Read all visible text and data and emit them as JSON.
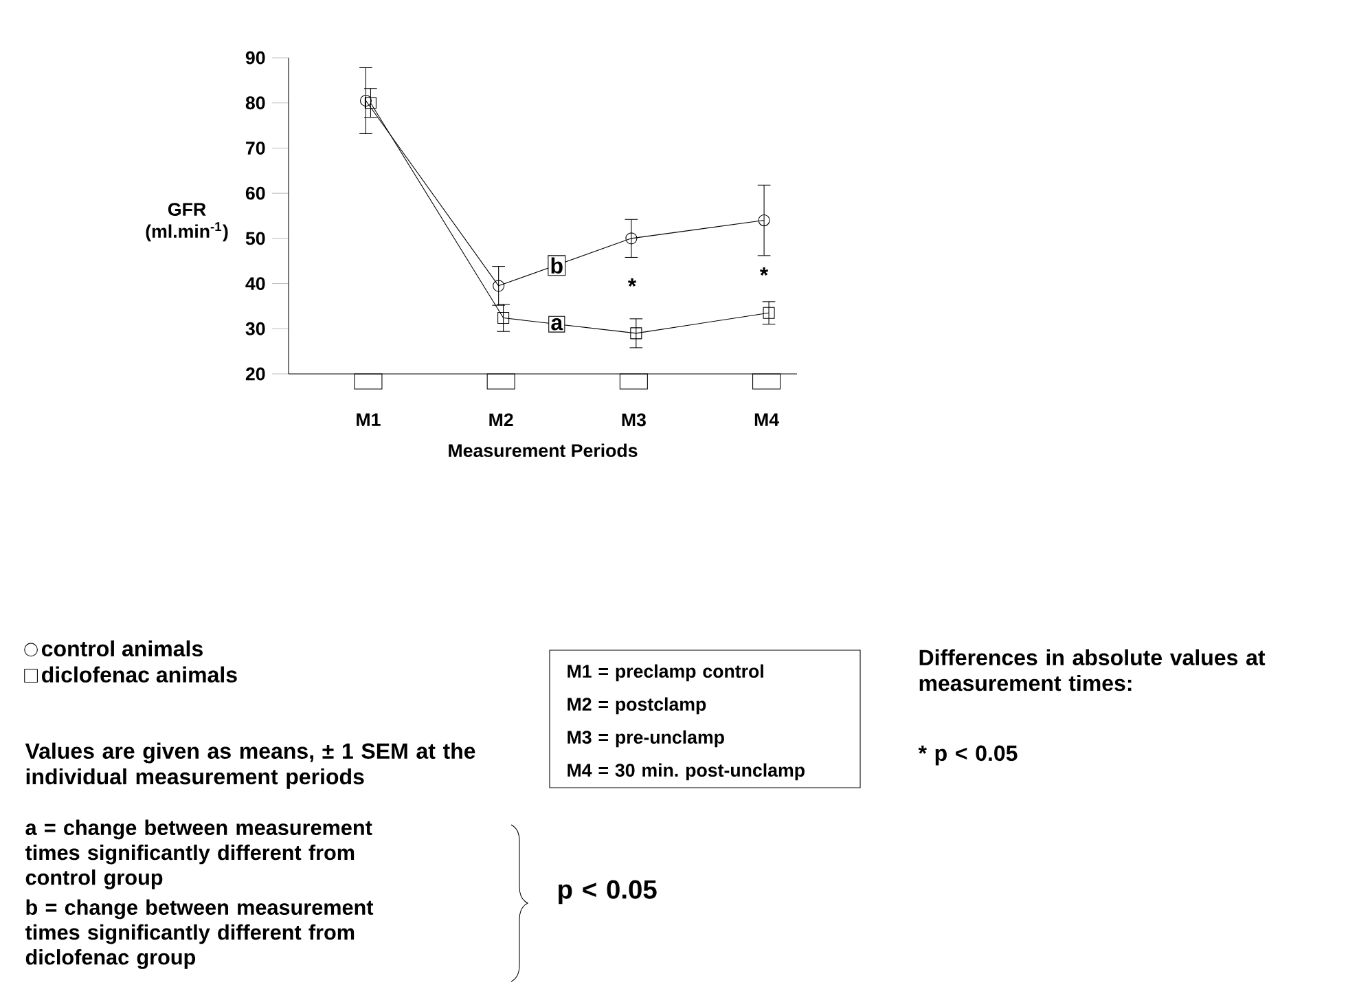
{
  "chart_data": {
    "type": "line",
    "ylabel": "GFR (ml.min$^{-1}$)",
    "xlabel": "Measurement Periods",
    "categories": [
      "M1",
      "M2",
      "M3",
      "M4"
    ],
    "ylim": [
      20,
      90
    ],
    "yticks": [
      20,
      30,
      40,
      50,
      60,
      70,
      80,
      90
    ],
    "legend": "bottom left",
    "series": [
      {
        "name": "control animals",
        "color": "#000000",
        "marker": "circle",
        "values": [
          80.5,
          39.5,
          50,
          54
        ],
        "errors": [
          7.3,
          4.3,
          4.2,
          7.8
        ]
      },
      {
        "name": "diclofenac animals",
        "color": "#000000",
        "marker": "square",
        "values": [
          80,
          32.4,
          29,
          33.5
        ],
        "errors": [
          3.2,
          3,
          3.2,
          2.5
        ]
      }
    ],
    "annotations": [
      {
        "text": "b",
        "y": 44
      },
      {
        "text": "a",
        "y": 31
      },
      "*",
      "*",
      "Values are given as means, ± 1 SEM at the individual measurement periods",
      "a = change between measurement times significantly different from control group",
      "b = change between measurement times significantly different from diclofenac group",
      "p < 0.05",
      "M1 = preclamp control",
      "M2 = postclamp",
      "M3 = pre-unclamp",
      "M4 = 30 min. post-unclamp",
      "Differences in absolute values at measurement times:",
      "* p < 0.05"
    ]
  }
}
